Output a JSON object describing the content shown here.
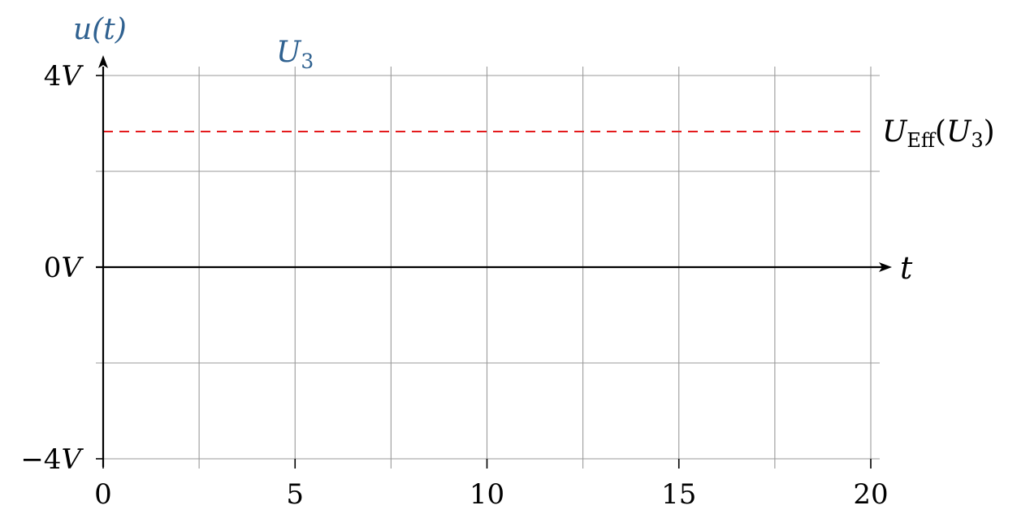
{
  "chart_data": {
    "type": "line",
    "title": "",
    "xlabel": "t",
    "ylabel": "u(t)",
    "xlim": [
      0,
      20
    ],
    "ylim": [
      -4,
      4
    ],
    "x_ticks": [
      0,
      5,
      10,
      15,
      20
    ],
    "x_tick_labels": [
      "0",
      "5",
      "10",
      "15",
      "20"
    ],
    "x_grid": [
      0,
      2.5,
      5,
      7.5,
      10,
      12.5,
      15,
      17.5,
      20
    ],
    "y_ticks": [
      -4,
      0,
      4
    ],
    "y_tick_labels": [
      {
        "sign": "−",
        "num": "4",
        "unit": "V"
      },
      {
        "sign": "",
        "num": "0",
        "unit": "V"
      },
      {
        "sign": "",
        "num": "4",
        "unit": "V"
      }
    ],
    "y_grid": [
      -4,
      -2,
      0,
      2,
      4
    ],
    "grid": true,
    "series": [
      {
        "name": "U_3",
        "name_main": "U",
        "name_sub": "3",
        "color": "#2f6190",
        "x": [],
        "y": []
      }
    ],
    "annotations": [
      {
        "type": "hline",
        "y": 2.83,
        "x_range": [
          0,
          20
        ],
        "style": "dashed",
        "color": "#e41a1c",
        "label_main": "U",
        "label_sub": "Eff",
        "label_arg_main": "U",
        "label_arg_sub": "3",
        "label": "U_Eff(U_3)"
      }
    ],
    "legend": "top-left"
  }
}
